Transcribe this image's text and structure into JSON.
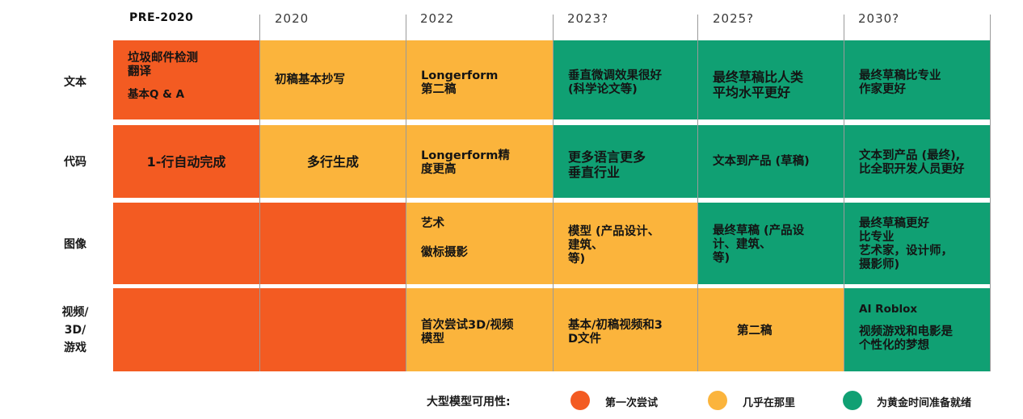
{
  "colors": {
    "first_try": "#f35b22",
    "almost_there": "#fbb43c",
    "ready": "#10a073",
    "separator": "#9a9a9a"
  },
  "years": [
    "PRE-2020",
    "2020",
    "2022",
    "2023?",
    "2025?",
    "2030?"
  ],
  "rows": [
    {
      "label": "文本"
    },
    {
      "label": "代码"
    },
    {
      "label": "图像"
    },
    {
      "label": "视频/\n3D/\n游戏"
    }
  ],
  "cells": {
    "text": {
      "pre2020_line1": "垃圾邮件检测\n翻译",
      "pre2020_line2": "基本Q & A",
      "y2020": "初稿基本抄写",
      "y2022": "Longerform\n第二稿",
      "y2023": "垂直微调效果很好\n(科学论文等)",
      "y2025": "最终草稿比人类\n平均水平更好",
      "y2030": "最终草稿比专业\n作家更好"
    },
    "code": {
      "pre2020": "1-行自动完成",
      "y2020": "多行生成",
      "y2022": "Longerform精\n度更高",
      "y2023": "更多语言更多\n垂直行业",
      "y2025": "文本到产品 (草稿)",
      "y2030": "文本到产品 (最终),\n比全职开发人员更好"
    },
    "image": {
      "y2022_line1": "艺术",
      "y2022_line2": "徽标摄影",
      "y2023": "模型 (产品设计、\n建筑、\n等)",
      "y2025": "最终草稿 (产品设\n计、建筑、\n等)",
      "y2030": "最终草稿更好\n比专业\n艺术家，设计师，\n摄影师)"
    },
    "video": {
      "y2022": "首次尝试3D/视频\n模型",
      "y2023": "基本/初稿视频和3\nD文件",
      "y2025": "第二稿",
      "y2030_line1": "AI Roblox",
      "y2030_line2": "视频游戏和电影是\n个性化的梦想"
    }
  },
  "legend": {
    "title": "大型模型可用性:",
    "items": [
      {
        "label": "第一次尝试",
        "color": "#f35b22"
      },
      {
        "label": "几乎在那里",
        "color": "#fbb43c"
      },
      {
        "label": "为黄金时间准备就绪",
        "color": "#10a073"
      }
    ]
  }
}
